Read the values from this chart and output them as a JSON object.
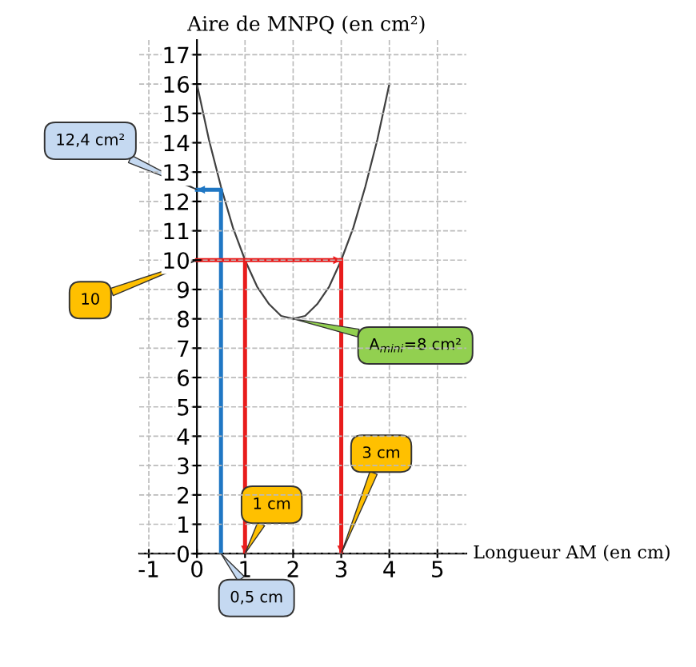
{
  "chart_data": {
    "type": "line",
    "xlabel": "Longueur AM (en cm)",
    "ylabel": "Aire de MNPQ (en cm²)",
    "xlim": [
      -1.2,
      5.6
    ],
    "ylim": [
      0,
      17.5
    ],
    "xticks": [
      -1,
      0,
      1,
      2,
      3,
      4,
      5
    ],
    "yticks": [
      0,
      1,
      2,
      3,
      4,
      5,
      6,
      7,
      8,
      9,
      10,
      11,
      12,
      13,
      14,
      15,
      16,
      17
    ],
    "grid": true,
    "legend": false,
    "marker": "none",
    "line_style": "solid",
    "series": [
      {
        "color": "#404040",
        "x": [
          0,
          0.25,
          0.5,
          0.75,
          1,
          1.25,
          1.5,
          1.75,
          2,
          2.25,
          2.5,
          2.75,
          3,
          3.25,
          3.5,
          3.75,
          4
        ],
        "values": [
          16,
          14.1,
          12.5,
          11.1,
          10,
          9.1,
          8.5,
          8.1,
          8,
          8.1,
          8.5,
          9.1,
          10,
          11.1,
          12.5,
          14.1,
          16
        ]
      },
      {
        "color": "#1f77c4",
        "x": [
          0.5,
          0.5,
          0
        ],
        "values": [
          0,
          12.4,
          12.4
        ]
      },
      {
        "color": "#e81c1c",
        "x": [
          0,
          3
        ],
        "values": [
          10,
          10
        ]
      },
      {
        "color": "#e81c1c",
        "x": [
          1,
          1
        ],
        "values": [
          10,
          0
        ]
      },
      {
        "color": "#e81c1c",
        "x": [
          3,
          3
        ],
        "values": [
          10,
          0
        ]
      }
    ],
    "annotations": [
      {
        "text": "12,4 cm²",
        "x": 0,
        "y": 12.4
      },
      {
        "text": "10",
        "x": 0,
        "y": 10
      },
      {
        "text": "A$_{mini}$=8 cm²",
        "x": 2,
        "y": 8
      },
      {
        "text": "1 cm",
        "x": 1,
        "y": 0
      },
      {
        "text": "3 cm",
        "x": 3,
        "y": 0
      },
      {
        "text": "0,5 cm",
        "x": 0.5,
        "y": 0
      }
    ]
  }
}
